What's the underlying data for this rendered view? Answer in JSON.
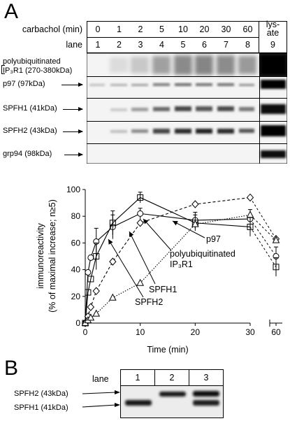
{
  "panel_a": {
    "letter": "A",
    "carbachol_label": "carbachol (min)",
    "lane_label": "lane",
    "times": [
      "0",
      "1",
      "2",
      "5",
      "10",
      "20",
      "30",
      "60"
    ],
    "lanes": [
      "1",
      "2",
      "3",
      "4",
      "5",
      "6",
      "7",
      "8"
    ],
    "lysate_line1": "lys-",
    "lysate_line2": "ate",
    "lysate_lane": "9",
    "bands": [
      {
        "line1": "polyubiquitinated",
        "line2": "IP₃R1 (270-380kDa)"
      },
      {
        "line1": "p97 (97kDa)"
      },
      {
        "line1": "SPFH1 (41kDa)"
      },
      {
        "line1": "SPFH2 (43kDa)"
      },
      {
        "line1": "grp94 (98kDa)"
      }
    ]
  },
  "chart_data": {
    "type": "line",
    "ylabel_line1": "immunoreactivity",
    "ylabel_line2": "(% of maximal increase; n≥5)",
    "xlabel": "Time (min)",
    "ylim": [
      0,
      100
    ],
    "yticks": [
      "0",
      "20",
      "40",
      "60",
      "80",
      "100"
    ],
    "xticks": [
      "0",
      "10",
      "20",
      "30",
      "60"
    ],
    "series": [
      {
        "marker": "circle",
        "style": "solid",
        "x": [
          0,
          0.5,
          1,
          2,
          5,
          10,
          20,
          30,
          60
        ],
        "y": [
          0,
          38,
          49,
          61,
          72,
          82,
          77,
          78,
          50
        ]
      },
      {
        "marker": "square",
        "style": "solid",
        "x": [
          0,
          0.5,
          1,
          2,
          5,
          10,
          20,
          30,
          60
        ],
        "y": [
          0,
          23,
          33,
          50,
          75,
          94,
          75,
          72,
          42
        ]
      },
      {
        "marker": "diamond",
        "style": "dashed",
        "x": [
          0,
          0.5,
          1,
          2,
          5,
          10,
          20,
          30,
          60
        ],
        "y": [
          0,
          5,
          12,
          24,
          46,
          75,
          89,
          94,
          63
        ]
      },
      {
        "marker": "triangle",
        "style": "dotted",
        "x": [
          0,
          0.5,
          1,
          2,
          5,
          10,
          20,
          30,
          60
        ],
        "y": [
          0,
          2,
          4,
          7,
          19,
          30,
          74,
          81,
          62
        ]
      }
    ],
    "annotations": {
      "p97": "p97",
      "poly_line1": "polyubiquitinated",
      "poly_line2": "IP₃R1",
      "spfh1": "SPFH1",
      "spfh2": "SPFH2"
    }
  },
  "panel_b": {
    "letter": "B",
    "lane_label": "lane",
    "lanes": [
      "1",
      "2",
      "3"
    ],
    "spfh2": "SPFH2 (43kDa)",
    "spfh1": "SPFH1 (41kDa)"
  }
}
